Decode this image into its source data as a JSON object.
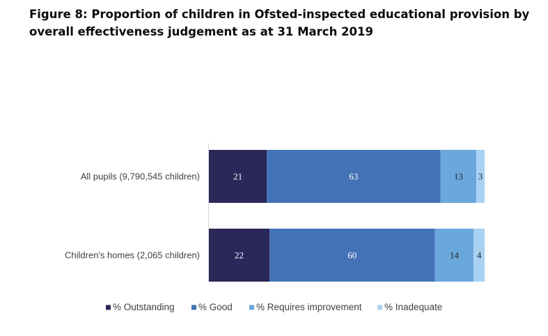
{
  "title": "Figure 8: Proportion of children in Ofsted-inspected educational provision by overall effectiveness judgement as at 31 March 2019",
  "chart_data": {
    "type": "bar",
    "orientation": "horizontal",
    "stacked": true,
    "categories": [
      "All pupils (9,790,545 children)",
      "Children's homes (2,065 children)"
    ],
    "series": [
      {
        "name": "% Outstanding",
        "values": [
          21,
          22
        ],
        "color": "#2a2859"
      },
      {
        "name": "% Good",
        "values": [
          63,
          60
        ],
        "color": "#4472b6"
      },
      {
        "name": "% Requires improvement",
        "values": [
          13,
          14
        ],
        "color": "#6aa7dc"
      },
      {
        "name": "% Inadequate",
        "values": [
          3,
          4
        ],
        "color": "#a8d2f3"
      }
    ],
    "label_colors": [
      "#ffffff",
      "#ffffff",
      "#1f1f1f",
      "#1f1f1f"
    ],
    "xlim": [
      0,
      100
    ],
    "legend_position": "bottom",
    "grid": false
  }
}
